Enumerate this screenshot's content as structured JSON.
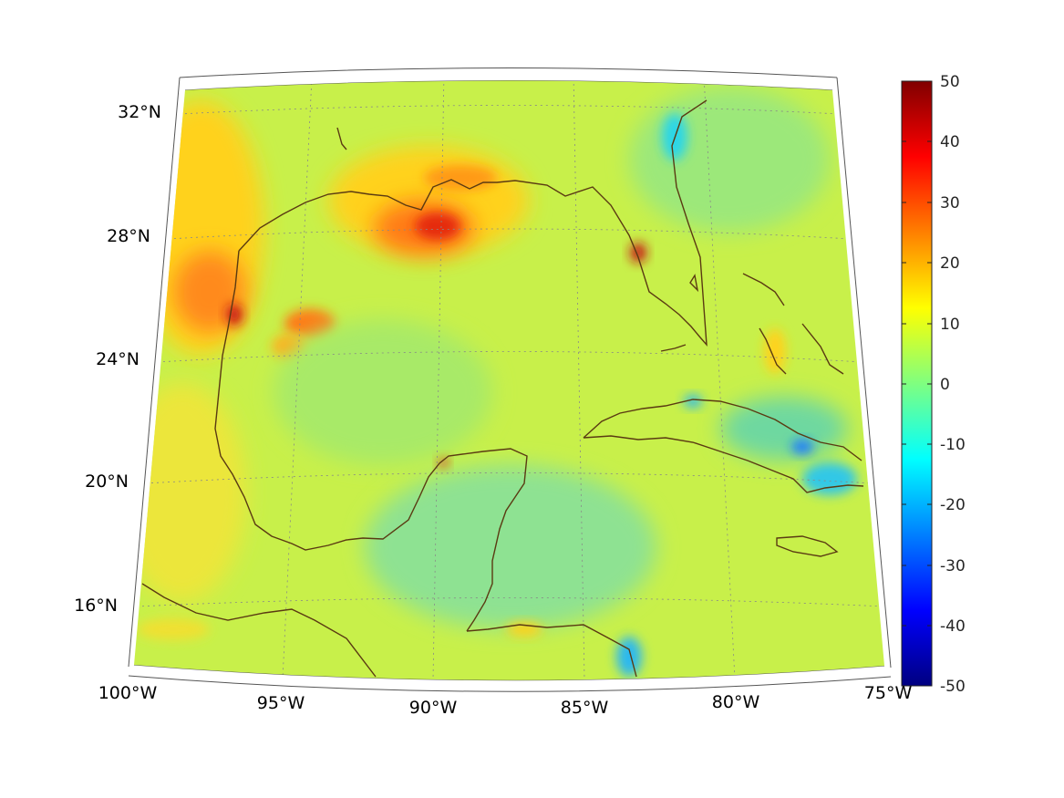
{
  "map": {
    "projection": "conic",
    "lon_range": [
      -100,
      -75
    ],
    "lat_range": [
      14,
      33
    ],
    "colormap": "jet",
    "grid": true,
    "coastline_color": "#5a3a12",
    "latitude_labels": [
      {
        "lat": 32,
        "label": "32°N"
      },
      {
        "lat": 28,
        "label": "28°N"
      },
      {
        "lat": 24,
        "label": "24°N"
      },
      {
        "lat": 20,
        "label": "20°N"
      },
      {
        "lat": 16,
        "label": "16°N"
      }
    ],
    "longitude_labels": [
      {
        "lon": -100,
        "label": "100°W"
      },
      {
        "lon": -95,
        "label": "95°W"
      },
      {
        "lon": -90,
        "label": "90°W"
      },
      {
        "lon": -85,
        "label": "85°W"
      },
      {
        "lon": -80,
        "label": "80°W"
      },
      {
        "lon": -75,
        "label": "75°W"
      }
    ]
  },
  "colorbar": {
    "range": [
      -50,
      50
    ],
    "ticks": [
      "50",
      "40",
      "30",
      "20",
      "10",
      "0",
      "-10",
      "-20",
      "-30",
      "-40",
      "-50"
    ]
  }
}
